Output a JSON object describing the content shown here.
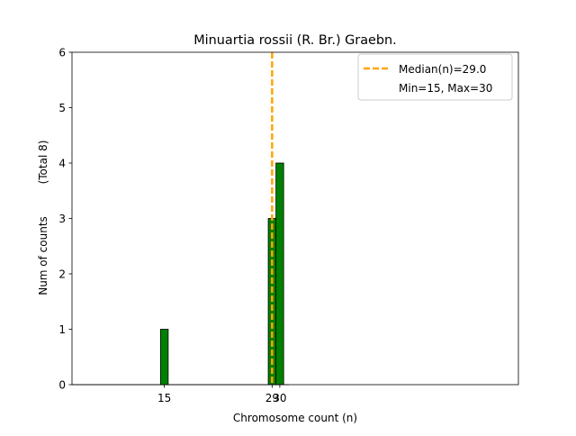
{
  "chart_data": {
    "type": "bar",
    "title": "Minuartia rossii (R. Br.) Graebn.",
    "xlabel": "Chromosome count (n)",
    "ylabel": "Num of counts",
    "ylabel_total": "(Total 8)",
    "xlim": [
      3,
      61
    ],
    "ylim": [
      0,
      6
    ],
    "xticks": [
      15,
      29,
      30
    ],
    "yticks": [
      0,
      1,
      2,
      3,
      4,
      5,
      6
    ],
    "bars": [
      {
        "x": 15,
        "value": 1
      },
      {
        "x": 29,
        "value": 3
      },
      {
        "x": 30,
        "value": 4
      }
    ],
    "bar_color": "#008000",
    "median": 29.0,
    "median_color": "#ffa500",
    "legend": {
      "median_label": "Median(n)=29.0",
      "range_label": "Min=15, Max=30",
      "placement": "top-right"
    },
    "grid": false
  }
}
